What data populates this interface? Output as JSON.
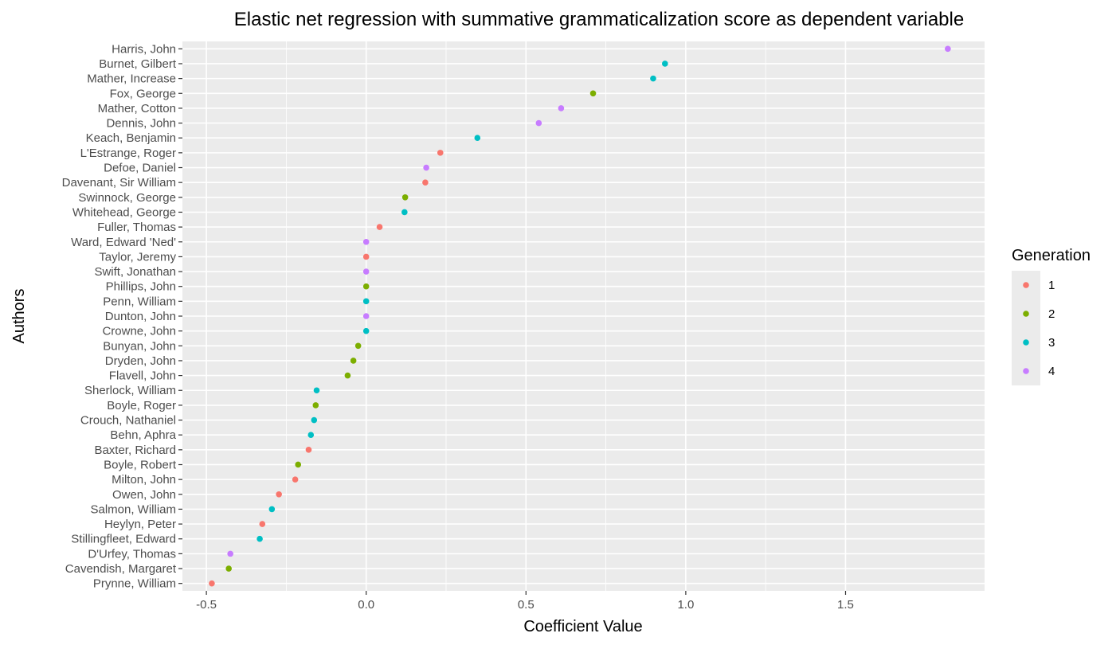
{
  "chart_data": {
    "type": "scatter",
    "title": "Elastic net regression with summative grammaticalization score as dependent variable",
    "xlabel": "Coefficient Value",
    "ylabel": "Authors",
    "xlim": [
      -0.575,
      1.935
    ],
    "x_ticks": [
      -0.5,
      0.0,
      0.5,
      1.0,
      1.5
    ],
    "x_tick_labels": [
      "-0.5",
      "0.0",
      "0.5",
      "1.0",
      "1.5"
    ],
    "grid": true,
    "legend": {
      "title": "Generation",
      "placement": "right",
      "entries": [
        {
          "label": "1",
          "color": "#F8766D"
        },
        {
          "label": "2",
          "color": "#7CAE00"
        },
        {
          "label": "3",
          "color": "#00BFC4"
        },
        {
          "label": "4",
          "color": "#C77CFF"
        }
      ]
    },
    "points": [
      {
        "author": "Harris, John",
        "value": 1.82,
        "generation": "4"
      },
      {
        "author": "Burnet, Gilbert",
        "value": 0.935,
        "generation": "3"
      },
      {
        "author": "Mather, Increase",
        "value": 0.898,
        "generation": "3"
      },
      {
        "author": "Fox, George",
        "value": 0.71,
        "generation": "2"
      },
      {
        "author": "Mather, Cotton",
        "value": 0.61,
        "generation": "4"
      },
      {
        "author": "Dennis, John",
        "value": 0.54,
        "generation": "4"
      },
      {
        "author": "Keach, Benjamin",
        "value": 0.348,
        "generation": "3"
      },
      {
        "author": "L'Estrange, Roger",
        "value": 0.232,
        "generation": "1"
      },
      {
        "author": "Defoe, Daniel",
        "value": 0.188,
        "generation": "4"
      },
      {
        "author": "Davenant, Sir William",
        "value": 0.185,
        "generation": "1"
      },
      {
        "author": "Swinnock, George",
        "value": 0.122,
        "generation": "2"
      },
      {
        "author": "Whitehead, George",
        "value": 0.12,
        "generation": "3"
      },
      {
        "author": "Fuller, Thomas",
        "value": 0.042,
        "generation": "1"
      },
      {
        "author": "Ward, Edward 'Ned'",
        "value": 0.0,
        "generation": "4"
      },
      {
        "author": "Taylor, Jeremy",
        "value": 0.0,
        "generation": "1"
      },
      {
        "author": "Swift, Jonathan",
        "value": 0.0,
        "generation": "4"
      },
      {
        "author": "Phillips, John",
        "value": 0.0,
        "generation": "2"
      },
      {
        "author": "Penn, William",
        "value": 0.0,
        "generation": "3"
      },
      {
        "author": "Dunton, John",
        "value": 0.0,
        "generation": "4"
      },
      {
        "author": "Crowne, John",
        "value": 0.0,
        "generation": "3"
      },
      {
        "author": "Bunyan, John",
        "value": -0.025,
        "generation": "2"
      },
      {
        "author": "Dryden, John",
        "value": -0.04,
        "generation": "2"
      },
      {
        "author": "Flavell, John",
        "value": -0.058,
        "generation": "2"
      },
      {
        "author": "Sherlock, William",
        "value": -0.155,
        "generation": "3"
      },
      {
        "author": "Boyle, Roger",
        "value": -0.158,
        "generation": "2"
      },
      {
        "author": "Crouch, Nathaniel",
        "value": -0.163,
        "generation": "3"
      },
      {
        "author": "Behn, Aphra",
        "value": -0.173,
        "generation": "3"
      },
      {
        "author": "Baxter, Richard",
        "value": -0.18,
        "generation": "1"
      },
      {
        "author": "Boyle, Robert",
        "value": -0.213,
        "generation": "2"
      },
      {
        "author": "Milton, John",
        "value": -0.222,
        "generation": "1"
      },
      {
        "author": "Owen, John",
        "value": -0.273,
        "generation": "1"
      },
      {
        "author": "Salmon, William",
        "value": -0.295,
        "generation": "3"
      },
      {
        "author": "Heylyn, Peter",
        "value": -0.325,
        "generation": "1"
      },
      {
        "author": "Stillingfleet, Edward",
        "value": -0.333,
        "generation": "3"
      },
      {
        "author": "D'Urfey, Thomas",
        "value": -0.425,
        "generation": "4"
      },
      {
        "author": "Cavendish, Margaret",
        "value": -0.43,
        "generation": "2"
      },
      {
        "author": "Prynne, William",
        "value": -0.483,
        "generation": "1"
      }
    ]
  }
}
